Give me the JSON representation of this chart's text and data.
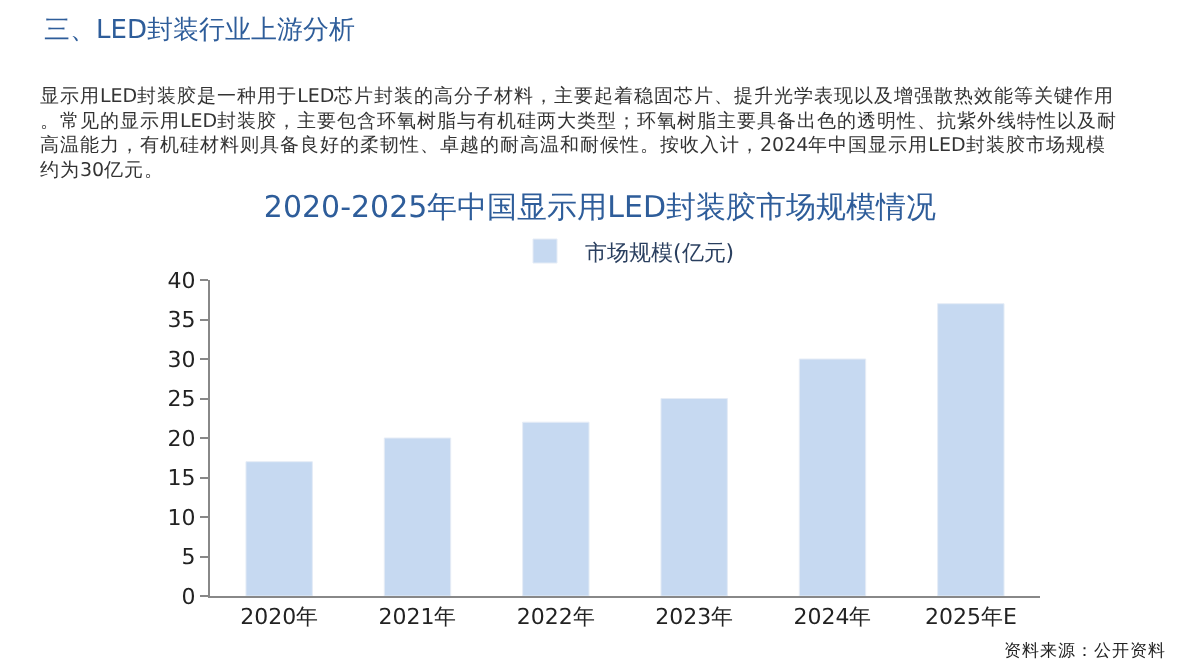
{
  "chart_data": {
    "type": "bar",
    "title": "2020-2025年中国显示用LED封装胶市场规模情况",
    "categories": [
      "2020年",
      "2021年",
      "2022年",
      "2023年",
      "2024年",
      "2025年E"
    ],
    "series": [
      {
        "name": "市场规模(亿元)",
        "color": "#c6d9f1",
        "values": [
          17,
          20,
          22,
          25,
          30,
          37
        ]
      }
    ],
    "ylim": [
      0,
      40
    ],
    "yticks": [
      0,
      5,
      10,
      15,
      20,
      25,
      30,
      35,
      40
    ],
    "grid": false,
    "legend": "top",
    "annotations": [
      "三、LED封装行业上游分析",
      "显示用LED封装胶是一种用于LED芯片封装的高分子材料，主要起着稳固芯片、提升光学表现以及增强散热效能等关键作用。常见的显示用LED封装胶，主要包含环氧树脂与有机硅两大类型；环氧树脂主要具备出色的透明性、抗紫外线特性以及耐高温能力，有机硅材料则具备良好的柔韧性、卓越的耐高温和耐候性。按收入计，2024年中国显示用LED封装胶市场规模约为30亿元。",
      "资料来源：公开资料"
    ]
  }
}
